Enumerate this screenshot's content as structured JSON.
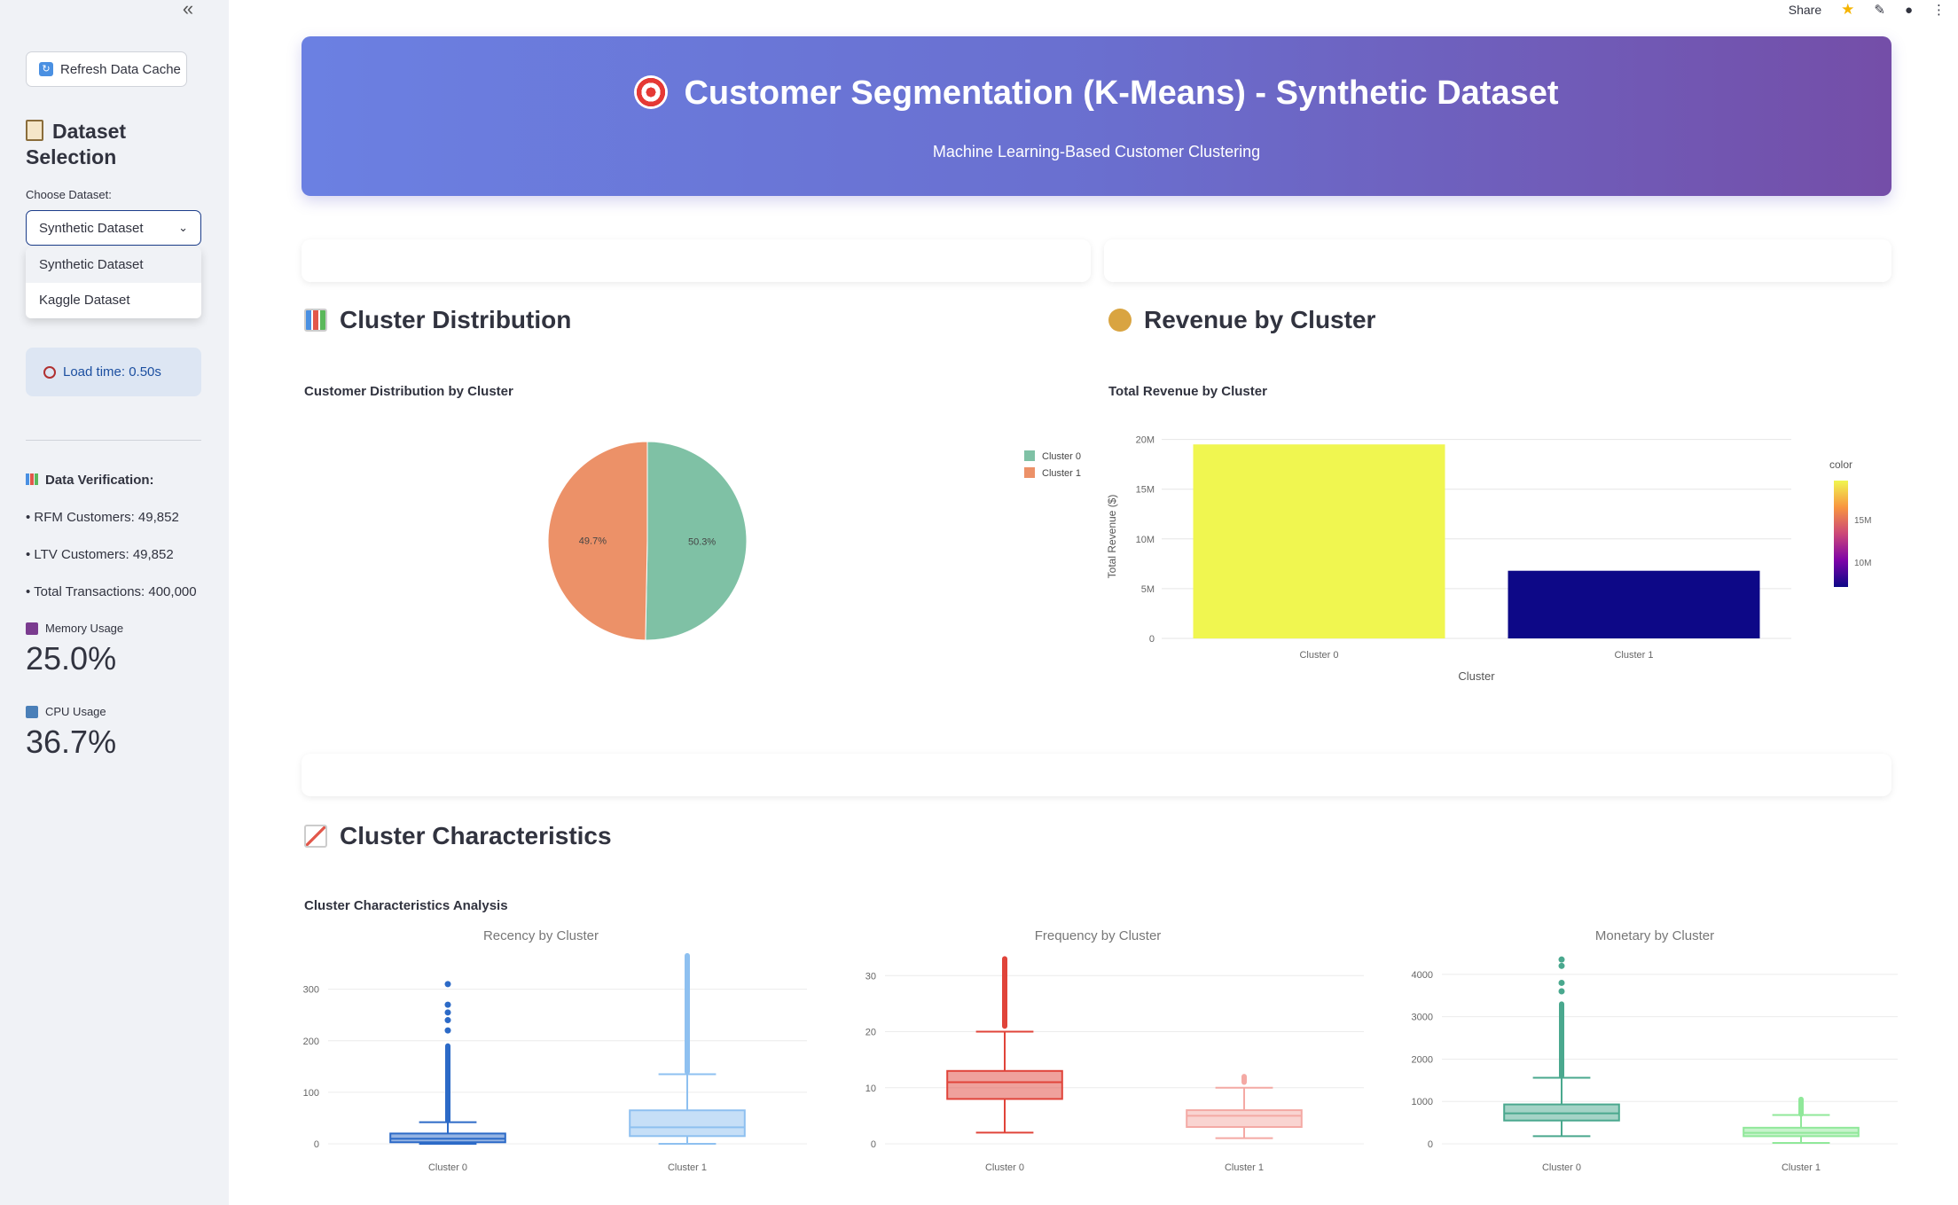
{
  "sidebar": {
    "collapse_glyph": "«",
    "refresh_label": "Refresh Data Cache",
    "dataset_heading": "Dataset Selection",
    "choose_label": "Choose Dataset:",
    "selected": "Synthetic Dataset",
    "options": [
      "Synthetic Dataset",
      "Kaggle Dataset"
    ],
    "load_time": "Load time: 0.50s",
    "verification_title": "Data Verification:",
    "verification": [
      "• RFM Customers: 49,852",
      "• LTV Customers: 49,852",
      "• Total Transactions: 400,000"
    ],
    "memory_label": "Memory Usage",
    "memory_value": "25.0%",
    "cpu_label": "CPU Usage",
    "cpu_value": "36.7%"
  },
  "topbar": {
    "share": "Share"
  },
  "banner": {
    "title": "Customer Segmentation (K-Means) - Synthetic Dataset",
    "subtitle": "Machine Learning-Based Customer Clustering"
  },
  "sections": {
    "distribution": "Cluster Distribution",
    "revenue": "Revenue by Cluster",
    "characteristics": "Cluster Characteristics"
  },
  "chart_data": [
    {
      "type": "pie",
      "title": "Customer Distribution by Cluster",
      "labels": [
        "Cluster 0",
        "Cluster 1"
      ],
      "values": [
        50.3,
        49.7
      ],
      "value_labels": [
        "50.3%",
        "49.7%"
      ],
      "colors": [
        "#7fc1a5",
        "#ec9168"
      ],
      "legend": "right"
    },
    {
      "type": "bar",
      "title": "Total Revenue by Cluster",
      "categories": [
        "Cluster 0",
        "Cluster 1"
      ],
      "values": [
        19500000,
        6800000
      ],
      "colors": [
        "#f0f650",
        "#0d0887"
      ],
      "xlabel": "Cluster",
      "ylabel": "Total Revenue ($)",
      "ylim": [
        0,
        20500000
      ],
      "yticks": [
        0,
        5000000,
        10000000,
        15000000,
        20000000
      ],
      "ytick_labels": [
        "0",
        "5M",
        "10M",
        "15M",
        "20M"
      ],
      "colorbar": {
        "title": "color",
        "ticks": [
          "15M",
          "10M"
        ]
      }
    },
    {
      "type": "box",
      "title": "Cluster Characteristics Analysis",
      "subplots": [
        {
          "title": "Recency by Cluster",
          "categories": [
            "Cluster 0",
            "Cluster 1"
          ],
          "ylim": [
            0,
            370
          ],
          "yticks": [
            0,
            100,
            200,
            300
          ],
          "colors": [
            "#2c6ac7",
            "#8ec0f0"
          ],
          "boxes": [
            {
              "min": 0,
              "q1": 3,
              "median": 10,
              "q3": 20,
              "max": 42,
              "outliers_from": 45,
              "outliers_to": 190,
              "sparse": [
                220,
                240,
                255,
                270,
                310
              ]
            },
            {
              "min": 0,
              "q1": 15,
              "median": 32,
              "q3": 65,
              "max": 135,
              "outliers_from": 140,
              "outliers_to": 365,
              "sparse": []
            }
          ]
        },
        {
          "title": "Frequency by Cluster",
          "categories": [
            "Cluster 0",
            "Cluster 1"
          ],
          "ylim": [
            0,
            34
          ],
          "yticks": [
            0,
            10,
            20,
            30
          ],
          "colors": [
            "#e0443a",
            "#f4a9a4"
          ],
          "boxes": [
            {
              "min": 2,
              "q1": 8,
              "median": 11,
              "q3": 13,
              "max": 20,
              "outliers_from": 21,
              "outliers_to": 33,
              "sparse": []
            },
            {
              "min": 1,
              "q1": 3,
              "median": 5,
              "q3": 6,
              "max": 10,
              "outliers_from": 11,
              "outliers_to": 12,
              "sparse": []
            }
          ]
        },
        {
          "title": "Monetary by Cluster",
          "categories": [
            "Cluster 0",
            "Cluster 1"
          ],
          "ylim": [
            0,
            4500
          ],
          "yticks": [
            0,
            1000,
            2000,
            3000,
            4000
          ],
          "ytick_labels": [
            "0",
            "1000",
            "2000",
            "3000",
            "4000"
          ],
          "colors": [
            "#4aa88e",
            "#90e89a"
          ],
          "boxes": [
            {
              "min": 180,
              "q1": 550,
              "median": 720,
              "q3": 930,
              "max": 1560,
              "outliers_from": 1600,
              "outliers_to": 3300,
              "sparse": [
                3600,
                3800,
                4200,
                4350
              ]
            },
            {
              "min": 20,
              "q1": 180,
              "median": 260,
              "q3": 380,
              "max": 680,
              "outliers_from": 700,
              "outliers_to": 1050,
              "sparse": []
            }
          ]
        }
      ]
    }
  ]
}
